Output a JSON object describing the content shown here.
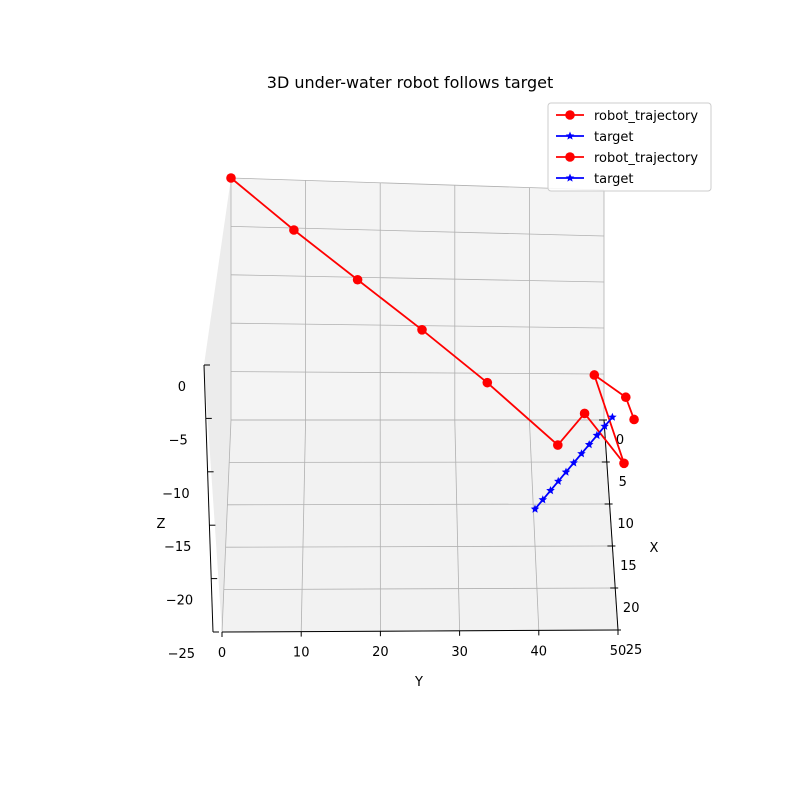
{
  "chart_data": {
    "type": "line",
    "projection": "3d",
    "title": "3D under-water robot follows target",
    "xlabel": "X",
    "ylabel": "Y",
    "zlabel": "Z",
    "xlim": [
      0,
      25
    ],
    "ylim": [
      0,
      50
    ],
    "zlim": [
      -25,
      0
    ],
    "x_ticks": [
      "0",
      "5",
      "10",
      "15",
      "20",
      "25"
    ],
    "y_ticks": [
      "0",
      "10",
      "20",
      "30",
      "40",
      "50"
    ],
    "z_ticks": [
      "0",
      "−5",
      "−10",
      "−15",
      "−20",
      "−25"
    ],
    "grid": true,
    "legend_position": "top-right",
    "series": [
      {
        "name": "robot_trajectory",
        "color": "#ff0000",
        "marker": "circle",
        "points": [
          {
            "x": 0,
            "y": 0,
            "z": 0
          },
          {
            "x": 2.5,
            "y": 8.5,
            "z": -3
          },
          {
            "x": 4.8,
            "y": 17,
            "z": -6
          },
          {
            "x": 7.2,
            "y": 25.5,
            "z": -9
          },
          {
            "x": 10,
            "y": 34,
            "z": -12
          },
          {
            "x": 14,
            "y": 43,
            "z": -15
          },
          {
            "x": 13.5,
            "y": 46.5,
            "z": -12
          },
          {
            "x": 15,
            "y": 51.5,
            "z": -16
          },
          {
            "x": 10,
            "y": 48,
            "z": -11
          },
          {
            "x": 11.5,
            "y": 52,
            "z": -12
          },
          {
            "x": 12.5,
            "y": 53,
            "z": -13.5
          }
        ]
      },
      {
        "name": "target",
        "color": "#0000ff",
        "marker": "star",
        "points": [
          {
            "x": 15,
            "y": 40,
            "z": -21
          },
          {
            "x": 15,
            "y": 41,
            "z": -20
          },
          {
            "x": 15,
            "y": 42,
            "z": -19
          },
          {
            "x": 15,
            "y": 43,
            "z": -18
          },
          {
            "x": 15,
            "y": 44,
            "z": -17
          },
          {
            "x": 15,
            "y": 45,
            "z": -16
          },
          {
            "x": 15,
            "y": 46,
            "z": -15
          },
          {
            "x": 15,
            "y": 47,
            "z": -14
          },
          {
            "x": 15,
            "y": 48,
            "z": -13
          },
          {
            "x": 15,
            "y": 49,
            "z": -12
          },
          {
            "x": 15,
            "y": 50,
            "z": -11
          }
        ]
      }
    ],
    "legend_entries": [
      {
        "label": "robot_trajectory",
        "color": "#ff0000",
        "marker": "circle"
      },
      {
        "label": "target",
        "color": "#0000ff",
        "marker": "star"
      },
      {
        "label": "robot_trajectory",
        "color": "#ff0000",
        "marker": "circle"
      },
      {
        "label": "target",
        "color": "#0000ff",
        "marker": "star"
      }
    ]
  }
}
